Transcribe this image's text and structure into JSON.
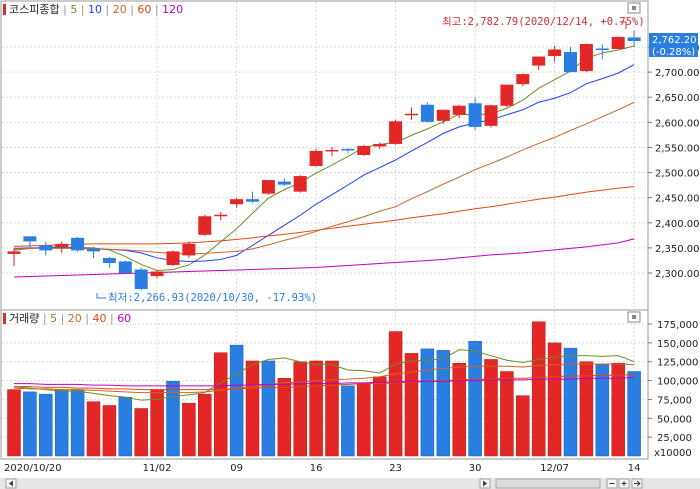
{
  "price_panel": {
    "legend": [
      {
        "text": "코스피종합",
        "color": "#d32f2f"
      },
      {
        "text": "5",
        "color": "#6b8e23"
      },
      {
        "text": "10",
        "color": "#1e40ff"
      },
      {
        "text": "20",
        "color": "#c8682a"
      },
      {
        "text": "60",
        "color": "#e04a10"
      },
      {
        "text": "120",
        "color": "#c000c0"
      }
    ],
    "last_price_label": "2,762.20",
    "last_change_label": "(-0.28%)",
    "high_annotation": "최고:2,782.79(2020/12/14, +0.75%)",
    "low_annotation": "최저:2,266.93(2020/10/30, -17.93%)",
    "yticks": [
      "2,750.00",
      "2,700.00",
      "2,650.00",
      "2,600.00",
      "2,550.00",
      "2,500.00",
      "2,450.00",
      "2,400.00",
      "2,350.00",
      "2,300.00"
    ]
  },
  "volume_panel": {
    "legend": [
      {
        "text": "거래량",
        "color": "#d32f2f"
      },
      {
        "text": "5",
        "color": "#6b8e23"
      },
      {
        "text": "20",
        "color": "#c8682a"
      },
      {
        "text": "40",
        "color": "#e04a10"
      },
      {
        "text": "60",
        "color": "#c000c0"
      }
    ],
    "yticks": [
      "175,000",
      "150,000",
      "125,000",
      "100,000",
      "75,000",
      "50,000",
      "25,000"
    ],
    "unit": "x10000"
  },
  "x_labels": [
    "2020/10/20",
    "11/02",
    "09",
    "16",
    "23",
    "30",
    "12/07",
    "14"
  ],
  "colors": {
    "up": "#e32626",
    "down": "#2a7de1",
    "ma5": "#6b8e23",
    "ma10": "#1e40ff",
    "ma20": "#c8682a",
    "ma60": "#e04a10",
    "ma120": "#c000c0"
  },
  "chart_data": [
    {
      "type": "candlestick",
      "title": "코스피종합",
      "x": [
        "10/20",
        "10/21",
        "10/22",
        "10/23",
        "10/26",
        "10/27",
        "10/28",
        "10/29",
        "10/30",
        "11/02",
        "11/03",
        "11/04",
        "11/05",
        "11/06",
        "11/09",
        "11/10",
        "11/11",
        "11/12",
        "11/13",
        "11/16",
        "11/17",
        "11/18",
        "11/19",
        "11/20",
        "11/23",
        "11/24",
        "11/25",
        "11/26",
        "11/27",
        "11/30",
        "12/01",
        "12/02",
        "12/03",
        "12/04",
        "12/07",
        "12/08",
        "12/09",
        "12/10",
        "12/11",
        "12/14"
      ],
      "ohlc": [
        [
          2338,
          2350,
          2314,
          2343
        ],
        [
          2373,
          2373,
          2352,
          2363
        ],
        [
          2355,
          2362,
          2335,
          2345
        ],
        [
          2352,
          2363,
          2340,
          2358
        ],
        [
          2370,
          2372,
          2342,
          2345
        ],
        [
          2348,
          2352,
          2330,
          2343
        ],
        [
          2330,
          2332,
          2310,
          2320
        ],
        [
          2323,
          2325,
          2298,
          2300
        ],
        [
          2307,
          2310,
          2266,
          2268
        ],
        [
          2294,
          2306,
          2290,
          2303
        ],
        [
          2316,
          2345,
          2314,
          2343
        ],
        [
          2335,
          2363,
          2330,
          2358
        ],
        [
          2376,
          2416,
          2374,
          2413
        ],
        [
          2413,
          2421,
          2405,
          2416
        ],
        [
          2437,
          2450,
          2430,
          2447
        ],
        [
          2447,
          2462,
          2440,
          2442
        ],
        [
          2458,
          2485,
          2456,
          2485
        ],
        [
          2482,
          2488,
          2473,
          2476
        ],
        [
          2462,
          2495,
          2460,
          2493
        ],
        [
          2513,
          2548,
          2512,
          2543
        ],
        [
          2543,
          2551,
          2533,
          2545
        ],
        [
          2547,
          2548,
          2538,
          2545
        ],
        [
          2535,
          2555,
          2533,
          2553
        ],
        [
          2552,
          2560,
          2547,
          2557
        ],
        [
          2557,
          2605,
          2555,
          2602
        ],
        [
          2617,
          2630,
          2605,
          2617
        ],
        [
          2635,
          2640,
          2600,
          2601
        ],
        [
          2603,
          2625,
          2597,
          2625
        ],
        [
          2615,
          2635,
          2608,
          2633
        ],
        [
          2638,
          2650,
          2585,
          2591
        ],
        [
          2593,
          2635,
          2590,
          2634
        ],
        [
          2633,
          2675,
          2630,
          2675
        ],
        [
          2676,
          2697,
          2672,
          2696
        ],
        [
          2713,
          2731,
          2704,
          2731
        ],
        [
          2732,
          2752,
          2720,
          2745
        ],
        [
          2740,
          2750,
          2700,
          2700
        ],
        [
          2702,
          2757,
          2700,
          2756
        ],
        [
          2747,
          2755,
          2725,
          2746
        ],
        [
          2746,
          2771,
          2746,
          2770
        ],
        [
          2769,
          2783,
          2750,
          2762
        ]
      ],
      "moving_averages": [
        {
          "name": "5",
          "values": [
            2345,
            2349,
            2351,
            2352,
            2351,
            2350,
            2346,
            2333,
            2317,
            2305,
            2307,
            2316,
            2336,
            2362,
            2388,
            2419,
            2449,
            2466,
            2480,
            2499,
            2515,
            2532,
            2550,
            2556,
            2560,
            2574,
            2587,
            2601,
            2616,
            2615,
            2617,
            2628,
            2644,
            2668,
            2685,
            2702,
            2728,
            2738,
            2744,
            2752
          ]
        },
        {
          "name": "10",
          "values": [
            2349,
            2350,
            2350,
            2350,
            2349,
            2348,
            2347,
            2345,
            2340,
            2330,
            2325,
            2323,
            2324,
            2327,
            2335,
            2355,
            2375,
            2395,
            2415,
            2437,
            2456,
            2475,
            2495,
            2510,
            2525,
            2543,
            2560,
            2578,
            2591,
            2599,
            2605,
            2615,
            2625,
            2640,
            2648,
            2659,
            2677,
            2687,
            2698,
            2715
          ]
        },
        {
          "name": "20",
          "values": [
            2348,
            2349,
            2349,
            2349,
            2349,
            2348,
            2347,
            2346,
            2344,
            2341,
            2339,
            2338,
            2339,
            2341,
            2343,
            2348,
            2356,
            2365,
            2373,
            2383,
            2393,
            2402,
            2412,
            2423,
            2432,
            2448,
            2462,
            2477,
            2491,
            2506,
            2518,
            2531,
            2545,
            2558,
            2570,
            2584,
            2597,
            2611,
            2625,
            2640
          ]
        },
        {
          "name": "60",
          "values": [
            2353,
            2354,
            2355,
            2356,
            2357,
            2358,
            2358,
            2358,
            2358,
            2358,
            2359,
            2360,
            2362,
            2364,
            2367,
            2370,
            2374,
            2377,
            2381,
            2385,
            2389,
            2393,
            2397,
            2401,
            2405,
            2410,
            2414,
            2418,
            2423,
            2428,
            2432,
            2437,
            2442,
            2447,
            2451,
            2456,
            2461,
            2465,
            2469,
            2472
          ]
        },
        {
          "name": "120",
          "values": [
            2292,
            2293,
            2294,
            2295,
            2296,
            2297,
            2298,
            2299,
            2300,
            2301,
            2302,
            2303,
            2304,
            2305,
            2306,
            2307,
            2308,
            2309,
            2310,
            2311,
            2313,
            2315,
            2317,
            2319,
            2321,
            2323,
            2325,
            2327,
            2330,
            2333,
            2336,
            2338,
            2340,
            2343,
            2346,
            2349,
            2352,
            2356,
            2360,
            2368
          ]
        }
      ],
      "ylim": [
        2250,
        2800
      ]
    },
    {
      "type": "bar",
      "title": "거래량",
      "x": [
        "10/20",
        "10/21",
        "10/22",
        "10/23",
        "10/26",
        "10/27",
        "10/28",
        "10/29",
        "10/30",
        "11/02",
        "11/03",
        "11/04",
        "11/05",
        "11/06",
        "11/09",
        "11/10",
        "11/11",
        "11/12",
        "11/13",
        "11/16",
        "11/17",
        "11/18",
        "11/19",
        "11/20",
        "11/23",
        "11/24",
        "11/25",
        "11/26",
        "11/27",
        "11/30",
        "12/01",
        "12/02",
        "12/03",
        "12/04",
        "12/07",
        "12/08",
        "12/09",
        "12/10",
        "12/11",
        "12/14"
      ],
      "values": [
        88000,
        85000,
        82000,
        88000,
        88000,
        72000,
        67000,
        78000,
        63000,
        88000,
        99000,
        70000,
        82000,
        137000,
        147000,
        126000,
        126000,
        103000,
        125000,
        126000,
        126000,
        93000,
        97000,
        105000,
        165000,
        136000,
        142000,
        140000,
        123000,
        152000,
        128000,
        112000,
        80000,
        178000,
        150000,
        143000,
        125000,
        122000,
        123000,
        112000
      ],
      "up": [
        true,
        false,
        false,
        false,
        false,
        true,
        true,
        false,
        true,
        true,
        false,
        true,
        true,
        true,
        false,
        true,
        false,
        true,
        true,
        true,
        true,
        false,
        true,
        true,
        true,
        true,
        false,
        false,
        true,
        false,
        true,
        true,
        true,
        true,
        true,
        false,
        true,
        false,
        true,
        false
      ],
      "moving_averages": [
        {
          "name": "5",
          "values": [
            92000,
            90000,
            88000,
            86000,
            86000,
            83000,
            80000,
            78000,
            74000,
            75000,
            79000,
            81000,
            84000,
            97000,
            109000,
            121000,
            128000,
            130000,
            125000,
            121000,
            121000,
            114000,
            113000,
            110000,
            122000,
            126000,
            127000,
            129000,
            141000,
            139000,
            133000,
            127000,
            124000,
            128000,
            131000,
            133000,
            133000,
            132000,
            133000,
            125000
          ]
        },
        {
          "name": "20",
          "values": [
            90000,
            89000,
            89000,
            88000,
            88000,
            87000,
            86000,
            85000,
            84000,
            84000,
            84000,
            84000,
            85000,
            87000,
            90000,
            92000,
            95000,
            97000,
            98000,
            100000,
            101000,
            102000,
            103000,
            105000,
            109000,
            111000,
            114000,
            116000,
            118000,
            119000,
            119000,
            119000,
            118000,
            120000,
            121000,
            122000,
            122000,
            122000,
            122000,
            121000
          ]
        },
        {
          "name": "40",
          "values": [
            92000,
            92000,
            91000,
            91000,
            90000,
            90000,
            89000,
            89000,
            88000,
            88000,
            88000,
            88000,
            88000,
            88000,
            89000,
            90000,
            91000,
            91000,
            92000,
            93000,
            94000,
            95000,
            96000,
            96000,
            97000,
            98000,
            99000,
            100000,
            101000,
            102000,
            102000,
            103000,
            103000,
            104000,
            105000,
            106000,
            106000,
            107000,
            107000,
            108000
          ]
        },
        {
          "name": "60",
          "values": [
            96000,
            96000,
            95000,
            95000,
            95000,
            94000,
            94000,
            93000,
            93000,
            93000,
            93000,
            93000,
            93000,
            93000,
            94000,
            94000,
            95000,
            95000,
            96000,
            96000,
            96000,
            97000,
            97000,
            98000,
            98000,
            99000,
            99000,
            99000,
            100000,
            100000,
            101000,
            101000,
            101000,
            102000,
            102000,
            102000,
            103000,
            103000,
            103000,
            104000
          ]
        }
      ],
      "ylim": [
        0,
        185000
      ]
    }
  ]
}
